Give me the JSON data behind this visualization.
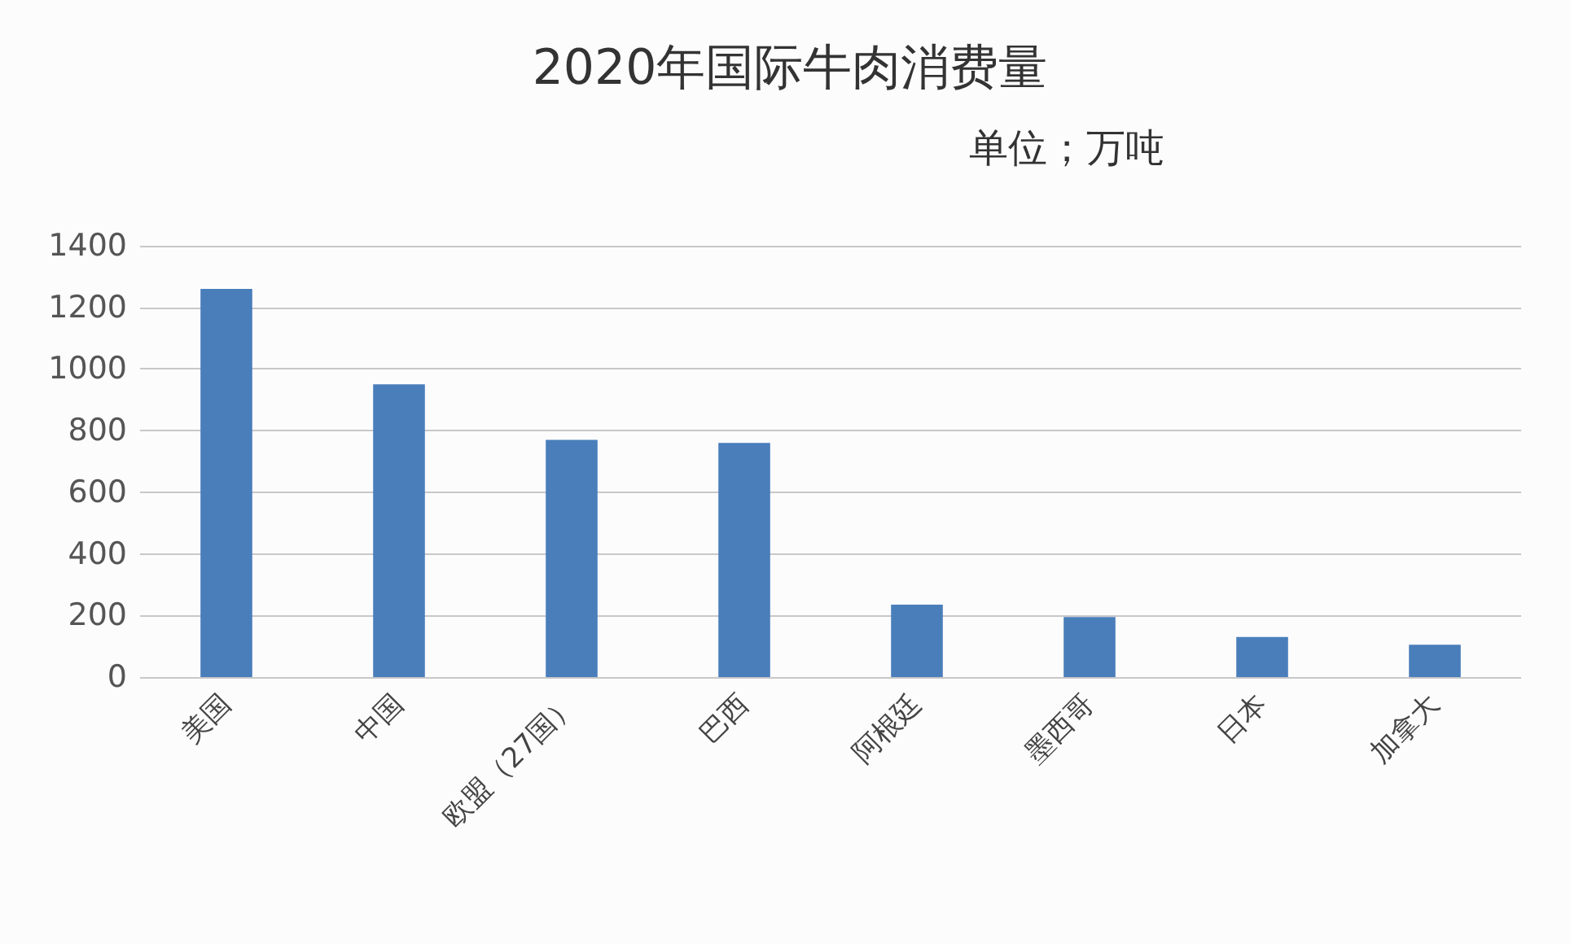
{
  "chart_data": {
    "type": "bar",
    "title": "2020年国际牛肉消费量",
    "subtitle": "单位；万吨",
    "categories": [
      "美国",
      "中国",
      "欧盟（27国）",
      "巴西",
      "阿根廷",
      "墨西哥",
      "日本",
      "加拿大"
    ],
    "values": [
      1260,
      950,
      770,
      760,
      235,
      195,
      130,
      105
    ],
    "color": "#4a7ebb",
    "ylim": [
      0,
      1400
    ],
    "yticks": [
      0,
      200,
      400,
      600,
      800,
      1000,
      1200,
      1400
    ],
    "grid": "y"
  }
}
